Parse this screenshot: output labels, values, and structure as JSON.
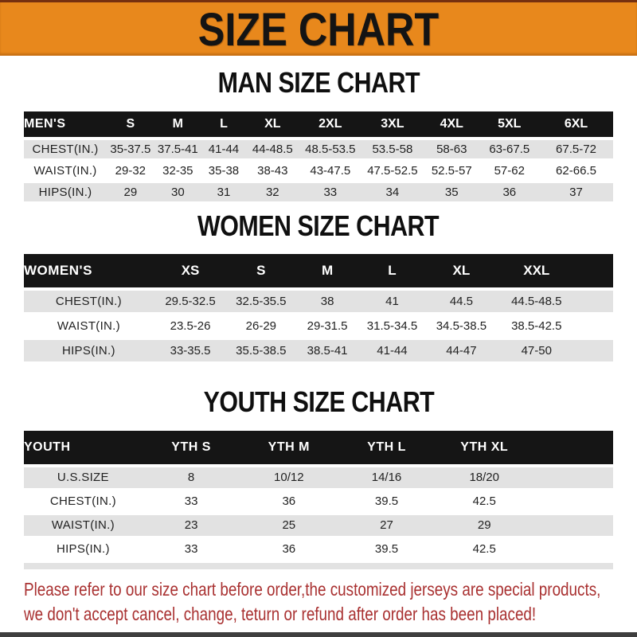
{
  "banner": {
    "title": "SIZE CHART"
  },
  "sections": [
    {
      "id": "men",
      "title": "MAN SIZE CHART",
      "group_label": "MEN'S",
      "columns": [
        "S",
        "M",
        "L",
        "XL",
        "2XL",
        "3XL",
        "4XL",
        "5XL",
        "6XL"
      ],
      "rows": [
        {
          "label": "CHEST(IN.)",
          "values": [
            "35-37.5",
            "37.5-41",
            "41-44",
            "44-48.5",
            "48.5-53.5",
            "53.5-58",
            "58-63",
            "63-67.5",
            "67.5-72"
          ]
        },
        {
          "label": "WAIST(IN.)",
          "values": [
            "29-32",
            "32-35",
            "35-38",
            "38-43",
            "43-47.5",
            "47.5-52.5",
            "52.5-57",
            "57-62",
            "62-66.5"
          ]
        },
        {
          "label": "HIPS(IN.)",
          "values": [
            "29",
            "30",
            "31",
            "32",
            "33",
            "34",
            "35",
            "36",
            "37"
          ]
        }
      ]
    },
    {
      "id": "women",
      "title": "WOMEN SIZE CHART",
      "group_label": "WOMEN'S",
      "columns": [
        "XS",
        "S",
        "M",
        "L",
        "XL",
        "XXL"
      ],
      "rows": [
        {
          "label": "CHEST(IN.)",
          "values": [
            "29.5-32.5",
            "32.5-35.5",
            "38",
            "41",
            "44.5",
            "44.5-48.5"
          ]
        },
        {
          "label": "WAIST(IN.)",
          "values": [
            "23.5-26",
            "26-29",
            "29-31.5",
            "31.5-34.5",
            "34.5-38.5",
            "38.5-42.5"
          ]
        },
        {
          "label": "HIPS(IN.)",
          "values": [
            "33-35.5",
            "35.5-38.5",
            "38.5-41",
            "41-44",
            "44-47",
            "47-50"
          ]
        }
      ]
    },
    {
      "id": "youth",
      "title": "YOUTH SIZE CHART",
      "group_label": "YOUTH",
      "columns": [
        "YTH S",
        "YTH M",
        "YTH L",
        "YTH XL"
      ],
      "rows": [
        {
          "label": "U.S.SIZE",
          "values": [
            "8",
            "10/12",
            "14/16",
            "18/20"
          ]
        },
        {
          "label": "CHEST(IN.)",
          "values": [
            "33",
            "36",
            "39.5",
            "42.5"
          ]
        },
        {
          "label": "WAIST(IN.)",
          "values": [
            "23",
            "25",
            "27",
            "29"
          ]
        },
        {
          "label": "HIPS(IN.)",
          "values": [
            "33",
            "36",
            "39.5",
            "42.5"
          ]
        }
      ]
    }
  ],
  "disclaimer": {
    "line1": "Please refer to our size chart before order,the customized jerseys are special products,",
    "line2": "we don't accept cancel, change, teturn or refund after order has been placed!"
  },
  "colors": {
    "accent_orange": "#E8881C",
    "header_black": "#151515",
    "row_gray": "#E2E2E2",
    "disclaimer_red": "#A93131"
  }
}
